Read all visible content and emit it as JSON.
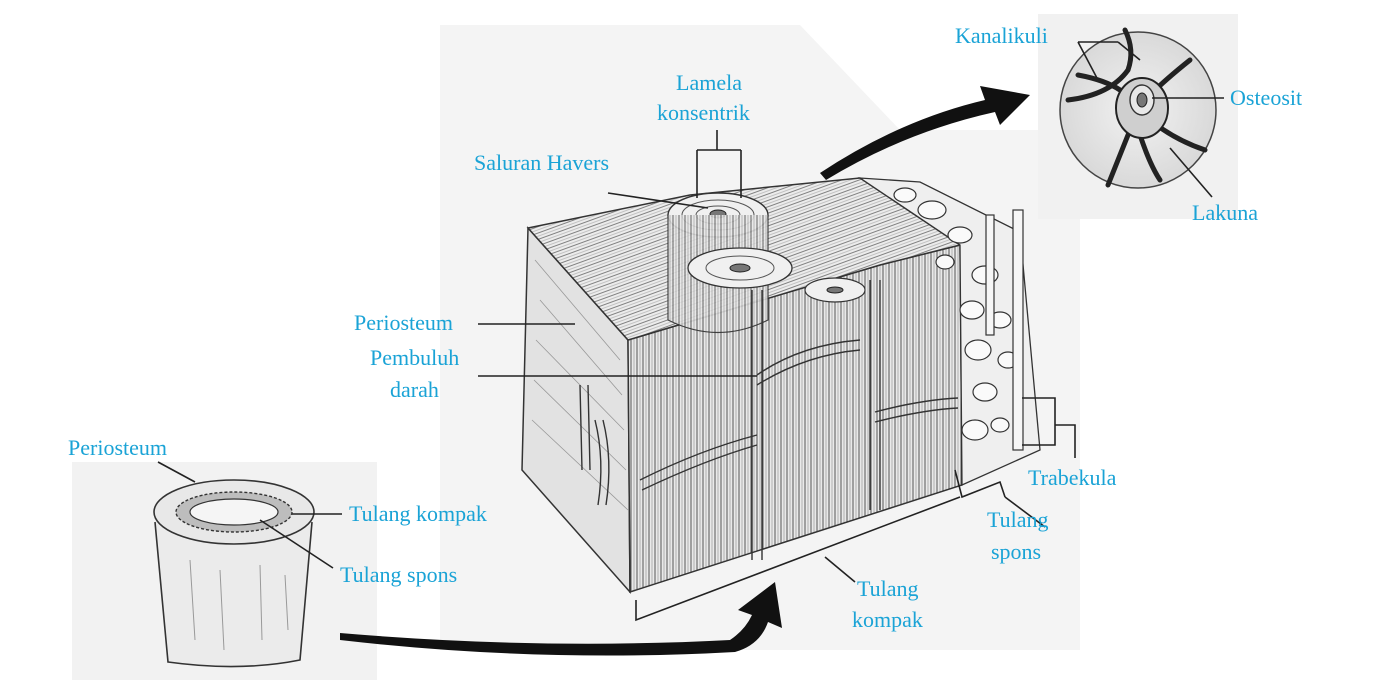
{
  "colors": {
    "label": "#1aa3d6",
    "leader": "#222222",
    "arrow": "#111111",
    "panel": "#f3f3f3",
    "bone_fill": "#ececec",
    "bone_stroke": "#333333"
  },
  "labels": {
    "lamela_line1": "Lamela",
    "lamela_line2": "konsentrik",
    "saluran_havers": "Saluran Havers",
    "periosteum_main": "Periosteum",
    "pembuluh_line1": "Pembuluh",
    "pembuluh_line2": "darah",
    "kanalikuli": "Kanalikuli",
    "osteosit": "Osteosit",
    "lakuna": "Lakuna",
    "trabekula": "Trabekula",
    "tulang_spons_line1": "Tulang",
    "tulang_spons_line2": "spons",
    "tulang_kompak_line1": "Tulang",
    "tulang_kompak_line2": "kompak",
    "periosteum_small": "Periosteum",
    "small_tulang_kompak": "Tulang kompak",
    "small_tulang_spons": "Tulang spons"
  }
}
